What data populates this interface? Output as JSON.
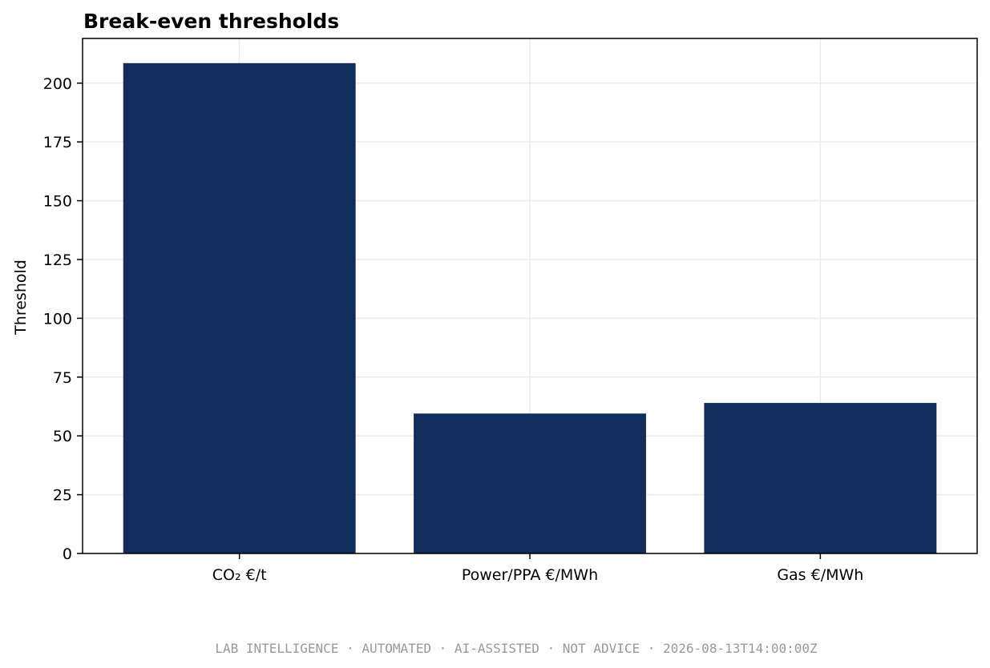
{
  "chart_data": {
    "type": "bar",
    "title": "Break-even thresholds",
    "xlabel": "",
    "ylabel": "Threshold",
    "categories": [
      "CO₂ €/t",
      "Power/PPA €/MWh",
      "Gas €/MWh"
    ],
    "values": [
      208.5,
      59.5,
      64
    ],
    "ylim": [
      0,
      219
    ],
    "yticks": [
      0,
      25,
      50,
      75,
      100,
      125,
      150,
      175,
      200
    ],
    "ytick_labels": [
      "0",
      "25",
      "50",
      "75",
      "100",
      "125",
      "150",
      "175",
      "200"
    ],
    "grid": true,
    "bar_color": "#112e5a",
    "grid_color": "#ebebeb"
  },
  "footer": {
    "text": "LAB INTELLIGENCE · AUTOMATED · AI-ASSISTED · NOT ADVICE · 2026-08-13T14:00:00Z"
  }
}
